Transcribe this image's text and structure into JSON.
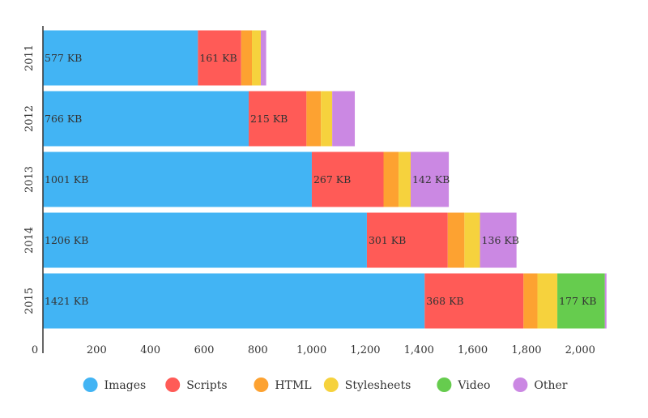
{
  "chart_data": {
    "type": "bar",
    "orientation": "horizontal",
    "stacked": true,
    "title": "",
    "xlabel": "",
    "ylabel": "",
    "categories": [
      "2011",
      "2012",
      "2013",
      "2014",
      "2015"
    ],
    "xlim": [
      0,
      2150
    ],
    "xticks": [
      0,
      200,
      400,
      600,
      800,
      1000,
      1200,
      1400,
      1600,
      1800,
      2000
    ],
    "xtick_labels": [
      "0",
      "200",
      "400",
      "600",
      "800",
      "1,000",
      "1,200",
      "1,400",
      "1,600",
      "1,800",
      "2,000"
    ],
    "grid": false,
    "legend_position": "bottom",
    "series": [
      {
        "name": "Images",
        "color": "#42b4f4",
        "values": [
          577,
          766,
          1001,
          1206,
          1421
        ],
        "labels": [
          "577 KB",
          "766 KB",
          "1001 KB",
          "1206 KB",
          "1421 KB"
        ]
      },
      {
        "name": "Scripts",
        "color": "#ff5b57",
        "values": [
          161,
          215,
          267,
          301,
          368
        ],
        "labels": [
          "161 KB",
          "215 KB",
          "267 KB",
          "301 KB",
          "368 KB"
        ]
      },
      {
        "name": "HTML",
        "color": "#fda231",
        "values": [
          40,
          54,
          56,
          62,
          52
        ],
        "labels": [
          "",
          "",
          "",
          "",
          ""
        ]
      },
      {
        "name": "Stylesheets",
        "color": "#f6d23d",
        "values": [
          33,
          42,
          45,
          58,
          74
        ],
        "labels": [
          "",
          "",
          "",
          "",
          ""
        ]
      },
      {
        "name": "Video",
        "color": "#66cc4e",
        "values": [
          0,
          0,
          0,
          0,
          177
        ],
        "labels": [
          "",
          "",
          "",
          "",
          "177 KB"
        ]
      },
      {
        "name": "Other",
        "color": "#cb88e3",
        "values": [
          20,
          84,
          142,
          136,
          6
        ],
        "labels": [
          "",
          "",
          "142 KB",
          "136 KB",
          ""
        ]
      }
    ]
  }
}
